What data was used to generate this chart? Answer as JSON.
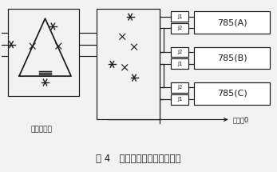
{
  "title": "图 4   同步信号获取电路的改进",
  "label_transformer": "同步变压器",
  "label_neutral": "中性点0",
  "label_785A": "785(A)",
  "label_785B": "785(B)",
  "label_785C": "785(C)",
  "label_J1": "J1",
  "label_J2": "J2",
  "bg_color": "#f2f2f2",
  "line_color": "#1a1a1a",
  "white": "#ffffff"
}
